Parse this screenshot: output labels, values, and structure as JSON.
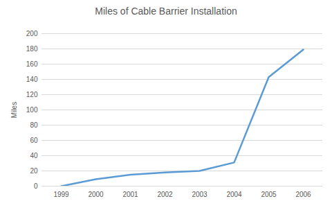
{
  "chart_data": {
    "type": "line",
    "title": "Miles of Cable Barrier Installation",
    "ylabel": "Miles",
    "categories": [
      "1999",
      "2000",
      "2001",
      "2002",
      "2003",
      "2004",
      "2005",
      "2006"
    ],
    "values": [
      0,
      9,
      15,
      18,
      20,
      31,
      143,
      179
    ],
    "color": "#5b9bd5",
    "ylim": [
      0,
      200
    ],
    "yticks": [
      0,
      20,
      40,
      60,
      80,
      100,
      120,
      140,
      160,
      180,
      200
    ],
    "grid": true
  }
}
